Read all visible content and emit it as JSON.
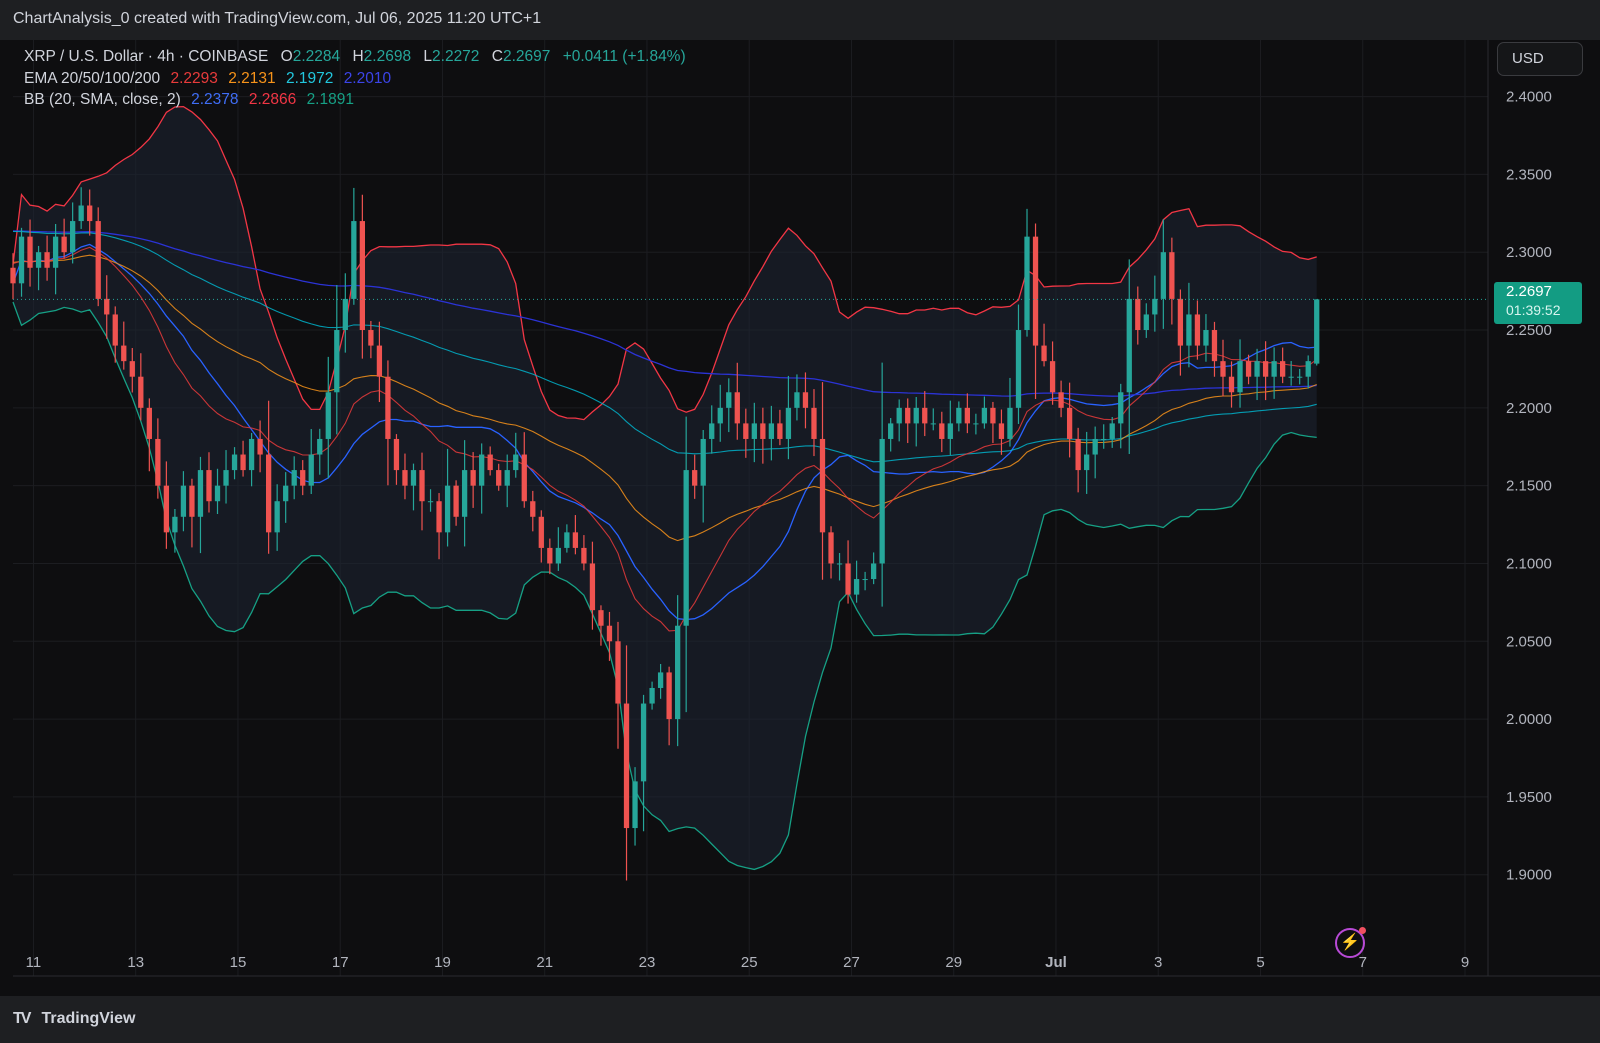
{
  "header": {
    "caption": "ChartAnalysis_0 created with TradingView.com, Jul 06, 2025 11:20 UTC+1"
  },
  "legend": {
    "symbol": "XRP / U.S. Dollar · 4h · COINBASE",
    "o_label": "O",
    "o": "2.2284",
    "h_label": "H",
    "h": "2.2698",
    "l_label": "L",
    "l": "2.2272",
    "c_label": "C",
    "c": "2.2697",
    "change": "+0.0411 (+1.84%)",
    "ema_label": "EMA 20/50/100/200",
    "ema_values": [
      "2.2293",
      "2.2131",
      "2.1972",
      "2.2010"
    ],
    "bb_label": "BB (20, SMA, close, 2)",
    "bb_values": [
      "2.2378",
      "2.2866",
      "2.1891"
    ]
  },
  "currency_button": "USD",
  "price_tag": {
    "price": "2.2697",
    "countdown": "01:39:52"
  },
  "footer": {
    "brand": "TradingView"
  },
  "colors": {
    "up": "#26a69a",
    "down": "#ef5350",
    "ema20": "#e83b3b",
    "ema50": "#f7931a",
    "ema100": "#00bcd4",
    "ema200": "#2b33d6",
    "bb_basis": "#2962ff",
    "bb_upper": "#f23645",
    "bb_lower": "#16a085",
    "price_tag": "#139c83"
  },
  "chart_data": {
    "type": "candlestick",
    "x_tick_labels": [
      "11",
      "13",
      "15",
      "17",
      "19",
      "21",
      "23",
      "25",
      "27",
      "29",
      "Jul",
      "3",
      "5",
      "7",
      "9"
    ],
    "y_tick_labels": [
      "1.9000",
      "1.9500",
      "2.0000",
      "2.0500",
      "2.1000",
      "2.1500",
      "2.2000",
      "2.2500",
      "2.3000",
      "2.3500",
      "2.4000"
    ],
    "ylim": [
      1.86,
      2.41
    ],
    "xlim_days": [
      10.6,
      39.45
    ],
    "candles_per_day": 6,
    "start_day": 10.6,
    "closes": [
      2.28,
      2.31,
      2.29,
      2.3,
      2.29,
      2.31,
      2.3,
      2.32,
      2.33,
      2.32,
      2.27,
      2.26,
      2.24,
      2.23,
      2.22,
      2.2,
      2.18,
      2.15,
      2.12,
      2.13,
      2.15,
      2.13,
      2.16,
      2.14,
      2.15,
      2.16,
      2.17,
      2.16,
      2.18,
      2.17,
      2.12,
      2.14,
      2.15,
      2.16,
      2.15,
      2.17,
      2.18,
      2.21,
      2.25,
      2.27,
      2.32,
      2.25,
      2.24,
      2.22,
      2.18,
      2.16,
      2.15,
      2.16,
      2.14,
      2.14,
      2.12,
      2.15,
      2.13,
      2.16,
      2.15,
      2.17,
      2.16,
      2.15,
      2.16,
      2.17,
      2.14,
      2.13,
      2.11,
      2.1,
      2.11,
      2.12,
      2.11,
      2.1,
      2.07,
      2.06,
      2.05,
      2.01,
      1.93,
      1.96,
      2.01,
      2.02,
      2.03,
      2.0,
      2.06,
      2.16,
      2.15,
      2.18,
      2.19,
      2.2,
      2.21,
      2.19,
      2.18,
      2.19,
      2.18,
      2.19,
      2.18,
      2.2,
      2.21,
      2.2,
      2.18,
      2.12,
      2.1,
      2.1,
      2.08,
      2.09,
      2.09,
      2.1,
      2.18,
      2.19,
      2.2,
      2.19,
      2.2,
      2.19,
      2.19,
      2.18,
      2.19,
      2.2,
      2.19,
      2.19,
      2.2,
      2.19,
      2.18,
      2.2,
      2.25,
      2.31,
      2.24,
      2.23,
      2.21,
      2.2,
      2.18,
      2.16,
      2.17,
      2.18,
      2.18,
      2.19,
      2.21,
      2.27,
      2.25,
      2.26,
      2.27,
      2.3,
      2.27,
      2.24,
      2.26,
      2.24,
      2.25,
      2.23,
      2.22,
      2.21,
      2.23,
      2.22,
      2.23,
      2.22,
      2.23,
      2.22,
      2.22,
      2.22,
      2.23,
      2.27
    ],
    "last": {
      "open": 2.2284,
      "high": 2.2698,
      "low": 2.2272,
      "close": 2.2697
    },
    "indicators": {
      "ema20": 2.2293,
      "ema50": 2.2131,
      "ema100": 2.1972,
      "ema200": 2.201,
      "bb_basis": 2.2378,
      "bb_upper": 2.2866,
      "bb_lower": 2.1891
    },
    "grid": true
  }
}
